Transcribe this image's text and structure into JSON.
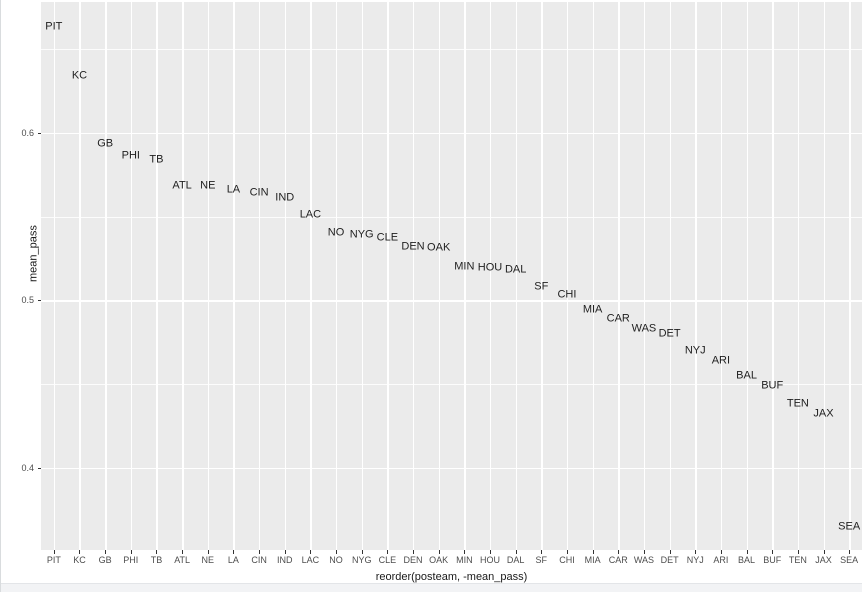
{
  "chart_data": {
    "type": "scatter",
    "marker": "text-label",
    "title": "",
    "xlabel": "reorder(posteam, -mean_pass)",
    "ylabel": "mean_pass",
    "x_categories": [
      "PIT",
      "KC",
      "GB",
      "PHI",
      "TB",
      "ATL",
      "NE",
      "LA",
      "CIN",
      "IND",
      "LAC",
      "NO",
      "NYG",
      "CLE",
      "DEN",
      "OAK",
      "MIN",
      "HOU",
      "DAL",
      "SF",
      "CHI",
      "MIA",
      "CAR",
      "WAS",
      "DET",
      "NYJ",
      "ARI",
      "BAL",
      "BUF",
      "TEN",
      "JAX",
      "SEA"
    ],
    "points": [
      {
        "team": "PIT",
        "mean_pass": 0.663
      },
      {
        "team": "KC",
        "mean_pass": 0.634
      },
      {
        "team": "GB",
        "mean_pass": 0.593
      },
      {
        "team": "PHI",
        "mean_pass": 0.586
      },
      {
        "team": "TB",
        "mean_pass": 0.584
      },
      {
        "team": "ATL",
        "mean_pass": 0.568
      },
      {
        "team": "NE",
        "mean_pass": 0.568
      },
      {
        "team": "LA",
        "mean_pass": 0.566
      },
      {
        "team": "CIN",
        "mean_pass": 0.564
      },
      {
        "team": "IND",
        "mean_pass": 0.561
      },
      {
        "team": "LAC",
        "mean_pass": 0.551
      },
      {
        "team": "NO",
        "mean_pass": 0.54
      },
      {
        "team": "NYG",
        "mean_pass": 0.539
      },
      {
        "team": "CLE",
        "mean_pass": 0.537
      },
      {
        "team": "DEN",
        "mean_pass": 0.532
      },
      {
        "team": "OAK",
        "mean_pass": 0.531
      },
      {
        "team": "MIN",
        "mean_pass": 0.52
      },
      {
        "team": "HOU",
        "mean_pass": 0.519
      },
      {
        "team": "DAL",
        "mean_pass": 0.518
      },
      {
        "team": "SF",
        "mean_pass": 0.508
      },
      {
        "team": "CHI",
        "mean_pass": 0.503
      },
      {
        "team": "MIA",
        "mean_pass": 0.494
      },
      {
        "team": "CAR",
        "mean_pass": 0.489
      },
      {
        "team": "WAS",
        "mean_pass": 0.483
      },
      {
        "team": "DET",
        "mean_pass": 0.48
      },
      {
        "team": "NYJ",
        "mean_pass": 0.47
      },
      {
        "team": "ARI",
        "mean_pass": 0.464
      },
      {
        "team": "BAL",
        "mean_pass": 0.455
      },
      {
        "team": "BUF",
        "mean_pass": 0.449
      },
      {
        "team": "TEN",
        "mean_pass": 0.438
      },
      {
        "team": "JAX",
        "mean_pass": 0.432
      },
      {
        "team": "SEA",
        "mean_pass": 0.365
      }
    ],
    "y_ticks": [
      {
        "value": 0.4,
        "label": "0.4"
      },
      {
        "value": 0.5,
        "label": "0.5"
      },
      {
        "value": 0.6,
        "label": "0.6"
      }
    ],
    "y_minor_ticks": [
      0.45,
      0.55,
      0.65
    ],
    "ylim": [
      0.351,
      0.678
    ],
    "grid": true,
    "legend": "none"
  },
  "style": {
    "panel_bg": "#EBEBEB",
    "grid_color": "#FFFFFF",
    "axis_text_color": "#4D4D4D",
    "axis_title_color": "#1A1A1A",
    "point_label_color": "#1F1F1F",
    "tick_mark_color": "#333333"
  }
}
